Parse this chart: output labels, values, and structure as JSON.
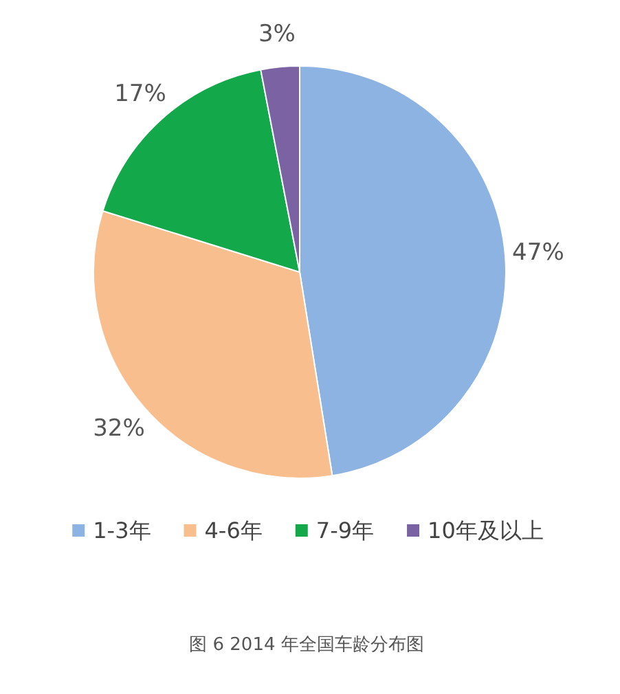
{
  "chart_data": {
    "type": "pie",
    "categories": [
      "1-3年",
      "4-6年",
      "7-9年",
      "10年及以上"
    ],
    "values": [
      47,
      32,
      17,
      3
    ],
    "colors": [
      "#8db3e2",
      "#f9be8e",
      "#13a84a",
      "#7a62a3"
    ],
    "value_labels": [
      "47%",
      "32%",
      "17%",
      "3%"
    ],
    "legend": "bottom",
    "annotations": [
      "图 6 2014 年全国车龄分布图"
    ]
  }
}
